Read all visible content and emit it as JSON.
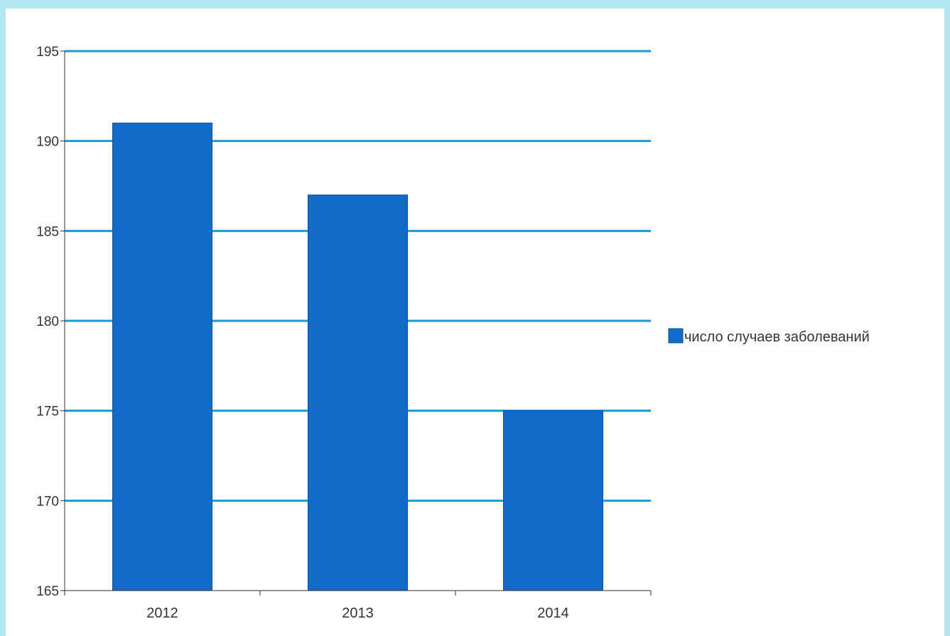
{
  "chart_data": {
    "type": "bar",
    "categories": [
      "2012",
      "2013",
      "2014"
    ],
    "series": [
      {
        "name": "число случаев заболеваний",
        "values": [
          191,
          187,
          175
        ]
      }
    ],
    "title": "",
    "xlabel": "",
    "ylabel": "",
    "ylim": [
      165,
      195
    ],
    "yticks": [
      165,
      170,
      175,
      180,
      185,
      190,
      195
    ],
    "grid": true,
    "legend_position": "right",
    "colors": {
      "bar": "#116cc7",
      "bar_edge": "#0c4f96",
      "grid": "#1a9bd9",
      "axis": "#333333",
      "background_border": "#b3e7f2"
    }
  }
}
